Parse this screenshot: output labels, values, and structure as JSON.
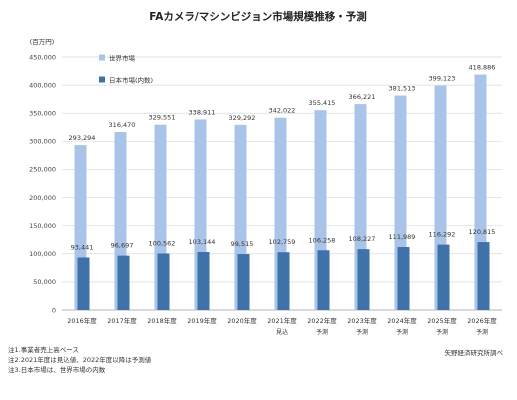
{
  "chart_data": {
    "type": "bar",
    "title": "FAカメラ/マシンビジョン市場規模推移・予測",
    "ylabel": "(百万円)",
    "ylim": [
      0,
      450000
    ],
    "yticks": [
      "0",
      "50,000",
      "100,000",
      "150,000",
      "200,000",
      "250,000",
      "300,000",
      "350,000",
      "400,000",
      "450,000"
    ],
    "yticks_values": [
      0,
      50000,
      100000,
      150000,
      200000,
      250000,
      300000,
      350000,
      400000,
      450000
    ],
    "grid": true,
    "legend_position": "top-left",
    "categories": [
      "2016年度",
      "2017年度",
      "2018年度",
      "2019年度",
      "2020年度",
      "2021年度",
      "2022年度",
      "2023年度",
      "2024年度",
      "2025年度",
      "2026年度"
    ],
    "category_sublabels": [
      "",
      "",
      "",
      "",
      "",
      "見込",
      "予測",
      "予測",
      "予測",
      "予測",
      "予測"
    ],
    "series": [
      {
        "name": "世界市場",
        "color": "#a9c4e8",
        "values": [
          293294,
          316470,
          329551,
          338911,
          329292,
          342022,
          355415,
          366221,
          381513,
          399123,
          418886
        ],
        "labels": [
          "293,294",
          "316,470",
          "329,551",
          "338,911",
          "329,292",
          "342,022",
          "355,415",
          "366,221",
          "381,513",
          "399,123",
          "418,886"
        ]
      },
      {
        "name": "日本市場(内数)",
        "color": "#3e72a8",
        "values": [
          93441,
          96697,
          100562,
          103144,
          99515,
          102759,
          106258,
          108227,
          111989,
          116292,
          120815
        ],
        "labels": [
          "93,441",
          "96,697",
          "100,562",
          "103,144",
          "99,515",
          "102,759",
          "106,258",
          "108,227",
          "111,989",
          "116,292",
          "120,815"
        ]
      }
    ]
  },
  "notes": [
    "注1.事業者売上高ベース",
    "注2.2021年度は見込値、2022年度以降は予測値",
    "注3.日本市場は、世界市場の内数"
  ],
  "source": "矢野経済研究所調べ"
}
